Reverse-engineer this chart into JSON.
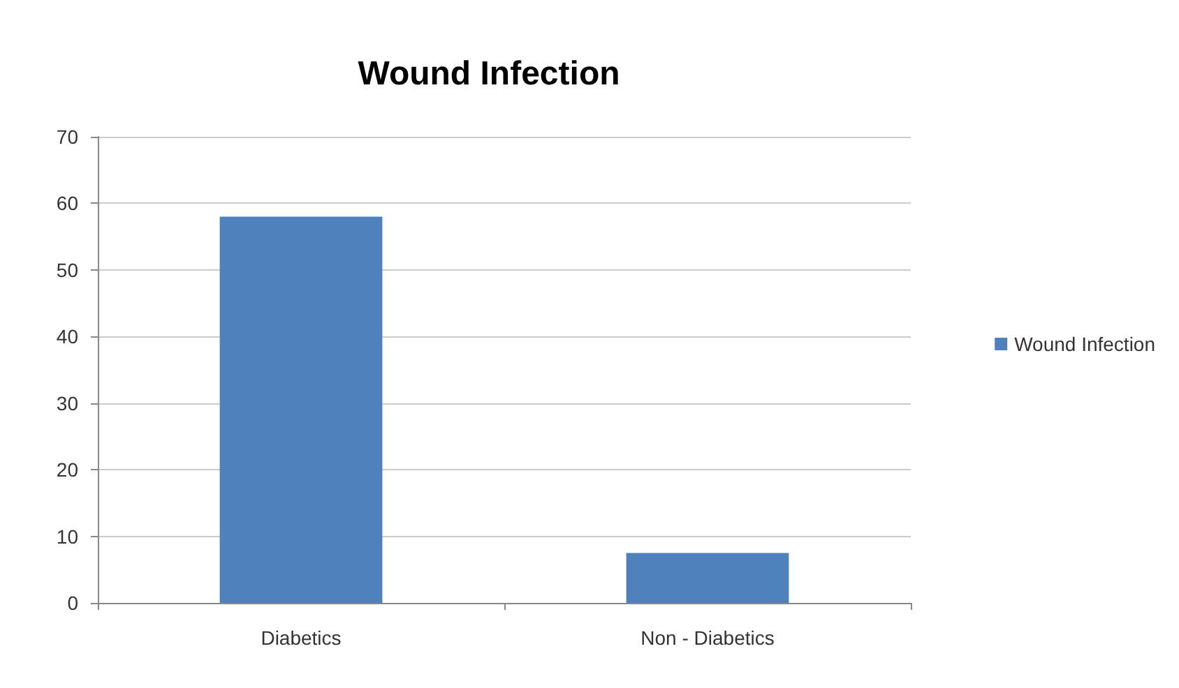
{
  "chart_data": {
    "type": "bar",
    "title": "Wound Infection",
    "categories": [
      "Diabetics",
      "Non - Diabetics"
    ],
    "series": [
      {
        "name": "Wound Infection",
        "color": "#4f81bd",
        "values": [
          58,
          7.5
        ]
      }
    ],
    "ylim": [
      0,
      70
    ],
    "yticks": [
      0,
      10,
      20,
      30,
      40,
      50,
      60,
      70
    ],
    "grid": "y",
    "legend": "right"
  }
}
